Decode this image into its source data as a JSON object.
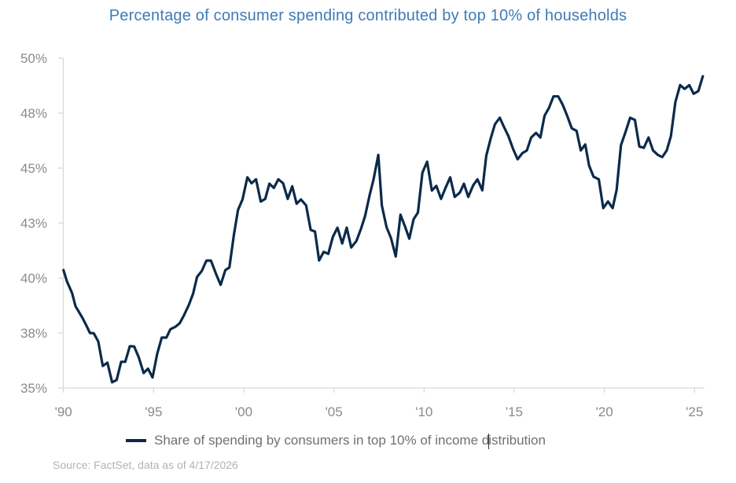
{
  "chart_data": {
    "type": "line",
    "title": "Percentage of consumer spending contributed by top 10% of households",
    "xlabel": "",
    "ylabel": "",
    "xlim": [
      1990,
      2025.5
    ],
    "ylim": [
      35,
      50
    ],
    "x_ticks": [
      {
        "value": 1990,
        "label": "'90"
      },
      {
        "value": 1995,
        "label": "'95"
      },
      {
        "value": 2000,
        "label": "'00"
      },
      {
        "value": 2005,
        "label": "'05"
      },
      {
        "value": 2010,
        "label": "'10"
      },
      {
        "value": 2015,
        "label": "'15"
      },
      {
        "value": 2020,
        "label": "'20"
      },
      {
        "value": 2025,
        "label": "'25"
      }
    ],
    "y_ticks": [
      {
        "value": 50,
        "label": "50%"
      },
      {
        "value": 47.5,
        "label": "48%"
      },
      {
        "value": 45,
        "label": "45%"
      },
      {
        "value": 42.5,
        "label": "43%"
      },
      {
        "value": 40,
        "label": "40%"
      },
      {
        "value": 37.5,
        "label": "38%"
      },
      {
        "value": 35,
        "label": "35%"
      }
    ],
    "grid": false,
    "legend_position": "bottom",
    "series": [
      {
        "name": "Share of spending by consumers in top 10% of income distribution",
        "color": "#0b2a4a",
        "points": [
          [
            1990.0,
            40.36
          ],
          [
            1990.19,
            39.85
          ],
          [
            1990.29,
            39.67
          ],
          [
            1990.48,
            39.31
          ],
          [
            1990.67,
            38.71
          ],
          [
            1990.84,
            38.48
          ],
          [
            1991.06,
            38.18
          ],
          [
            1991.28,
            37.82
          ],
          [
            1991.47,
            37.5
          ],
          [
            1991.68,
            37.49
          ],
          [
            1991.93,
            37.11
          ],
          [
            1992.18,
            36.0
          ],
          [
            1992.44,
            36.15
          ],
          [
            1992.7,
            35.26
          ],
          [
            1992.95,
            35.36
          ],
          [
            1993.2,
            36.19
          ],
          [
            1993.43,
            36.19
          ],
          [
            1993.68,
            36.9
          ],
          [
            1993.92,
            36.89
          ],
          [
            1994.18,
            36.39
          ],
          [
            1994.45,
            35.68
          ],
          [
            1994.69,
            35.88
          ],
          [
            1994.94,
            35.48
          ],
          [
            1995.2,
            36.55
          ],
          [
            1995.45,
            37.29
          ],
          [
            1995.71,
            37.29
          ],
          [
            1995.93,
            37.67
          ],
          [
            1996.22,
            37.79
          ],
          [
            1996.44,
            37.94
          ],
          [
            1996.68,
            38.3
          ],
          [
            1996.95,
            38.77
          ],
          [
            1997.19,
            39.29
          ],
          [
            1997.41,
            40.05
          ],
          [
            1997.67,
            40.32
          ],
          [
            1997.93,
            40.79
          ],
          [
            1998.18,
            40.79
          ],
          [
            1998.47,
            40.17
          ],
          [
            1998.72,
            39.69
          ],
          [
            1998.98,
            40.36
          ],
          [
            1999.2,
            40.48
          ],
          [
            1999.45,
            41.95
          ],
          [
            1999.68,
            43.1
          ],
          [
            1999.93,
            43.57
          ],
          [
            2000.2,
            44.58
          ],
          [
            2000.43,
            44.31
          ],
          [
            2000.68,
            44.49
          ],
          [
            2000.94,
            43.48
          ],
          [
            2001.19,
            43.6
          ],
          [
            2001.42,
            44.29
          ],
          [
            2001.67,
            44.1
          ],
          [
            2001.92,
            44.49
          ],
          [
            2002.18,
            44.31
          ],
          [
            2002.44,
            43.6
          ],
          [
            2002.69,
            44.17
          ],
          [
            2002.93,
            43.38
          ],
          [
            2003.17,
            43.57
          ],
          [
            2003.46,
            43.3
          ],
          [
            2003.71,
            42.19
          ],
          [
            2003.95,
            42.11
          ],
          [
            2004.18,
            40.8
          ],
          [
            2004.43,
            41.19
          ],
          [
            2004.69,
            41.1
          ],
          [
            2004.94,
            41.87
          ],
          [
            2005.2,
            42.29
          ],
          [
            2005.46,
            41.57
          ],
          [
            2005.71,
            42.29
          ],
          [
            2005.96,
            41.39
          ],
          [
            2006.25,
            41.69
          ],
          [
            2006.5,
            42.23
          ],
          [
            2006.73,
            42.82
          ],
          [
            2006.98,
            43.77
          ],
          [
            2007.2,
            44.49
          ],
          [
            2007.46,
            45.6
          ],
          [
            2007.66,
            43.3
          ],
          [
            2007.92,
            42.31
          ],
          [
            2008.17,
            41.81
          ],
          [
            2008.43,
            40.98
          ],
          [
            2008.69,
            42.88
          ],
          [
            2008.94,
            42.35
          ],
          [
            2009.18,
            41.79
          ],
          [
            2009.42,
            42.67
          ],
          [
            2009.66,
            42.98
          ],
          [
            2009.91,
            44.79
          ],
          [
            2010.17,
            45.29
          ],
          [
            2010.43,
            43.98
          ],
          [
            2010.68,
            44.19
          ],
          [
            2010.94,
            43.6
          ],
          [
            2011.19,
            44.1
          ],
          [
            2011.45,
            44.58
          ],
          [
            2011.7,
            43.69
          ],
          [
            2011.99,
            43.89
          ],
          [
            2012.21,
            44.29
          ],
          [
            2012.45,
            43.69
          ],
          [
            2012.72,
            44.21
          ],
          [
            2012.96,
            44.49
          ],
          [
            2013.23,
            43.99
          ],
          [
            2013.45,
            45.56
          ],
          [
            2013.69,
            46.33
          ],
          [
            2013.93,
            46.99
          ],
          [
            2014.2,
            47.29
          ],
          [
            2014.43,
            46.87
          ],
          [
            2014.68,
            46.45
          ],
          [
            2014.94,
            45.86
          ],
          [
            2015.19,
            45.4
          ],
          [
            2015.45,
            45.68
          ],
          [
            2015.7,
            45.8
          ],
          [
            2015.94,
            46.39
          ],
          [
            2016.21,
            46.6
          ],
          [
            2016.45,
            46.39
          ],
          [
            2016.68,
            47.38
          ],
          [
            2016.93,
            47.74
          ],
          [
            2017.18,
            48.26
          ],
          [
            2017.44,
            48.26
          ],
          [
            2017.69,
            47.88
          ],
          [
            2017.95,
            47.35
          ],
          [
            2018.19,
            46.81
          ],
          [
            2018.46,
            46.69
          ],
          [
            2018.69,
            45.8
          ],
          [
            2018.94,
            46.07
          ],
          [
            2019.15,
            45.12
          ],
          [
            2019.4,
            44.61
          ],
          [
            2019.69,
            44.49
          ],
          [
            2019.94,
            43.18
          ],
          [
            2020.2,
            43.48
          ],
          [
            2020.46,
            43.18
          ],
          [
            2020.68,
            44.01
          ],
          [
            2020.92,
            46.04
          ],
          [
            2021.17,
            46.63
          ],
          [
            2021.43,
            47.29
          ],
          [
            2021.69,
            47.19
          ],
          [
            2021.94,
            45.98
          ],
          [
            2022.19,
            45.92
          ],
          [
            2022.45,
            46.39
          ],
          [
            2022.7,
            45.8
          ],
          [
            2022.96,
            45.6
          ],
          [
            2023.21,
            45.5
          ],
          [
            2023.46,
            45.8
          ],
          [
            2023.69,
            46.45
          ],
          [
            2023.94,
            48.0
          ],
          [
            2024.2,
            48.77
          ],
          [
            2024.45,
            48.6
          ],
          [
            2024.71,
            48.77
          ],
          [
            2024.95,
            48.38
          ],
          [
            2025.21,
            48.5
          ],
          [
            2025.46,
            49.17
          ]
        ]
      }
    ],
    "source": "Source: FactSet, data as of 4/17/2026"
  },
  "legend": {
    "label_before_caret": "Share of spending by consumers in top 10% of income d",
    "label_after_caret": "istribution"
  }
}
